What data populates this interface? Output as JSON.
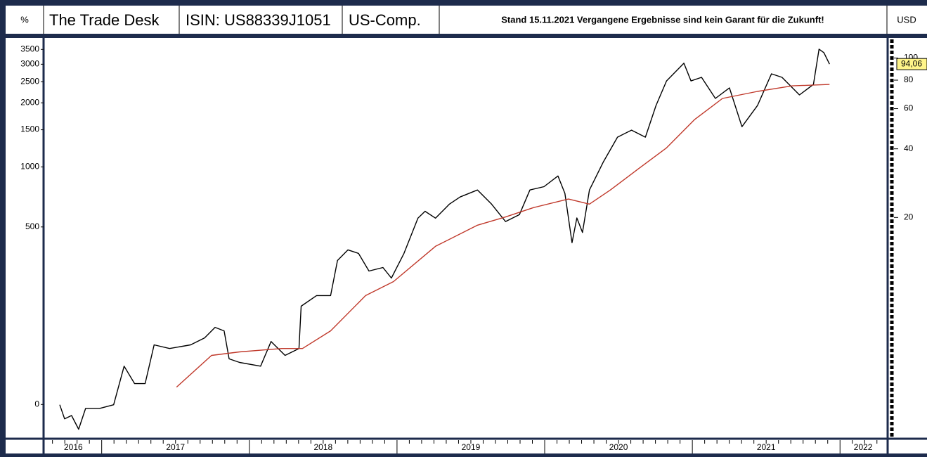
{
  "chart_data": {
    "type": "line",
    "header": {
      "left_unit": "%",
      "name": "The Trade Desk",
      "isin": "ISIN: US88339J1051",
      "market": "US-Comp.",
      "note": "Stand 15.11.2021  Vergangene Ergebnisse sind kein Garant für die Zukunft!",
      "right_unit": "USD"
    },
    "yscale": "log-growth",
    "ylim": [
      -27.7,
      3718
    ],
    "yticks": [
      0,
      500,
      1000,
      1500,
      2000,
      2500,
      3000,
      3500
    ],
    "y2scale": "log",
    "y2lim": [
      2.19,
      115.7
    ],
    "y2ticks": [
      20,
      40,
      60,
      80,
      100
    ],
    "xlim": [
      2016.616,
      2022.313
    ],
    "xticks": [
      2017,
      2018,
      2019,
      2020,
      2021,
      2022
    ],
    "year_labels": [
      "2016",
      "2017",
      "2018",
      "2019",
      "2020",
      "2021",
      "2022"
    ],
    "series": [
      {
        "name": "The Trade Desk",
        "color": "#000000",
        "axis": "y2",
        "x": [
          2016.716,
          2016.749,
          2016.796,
          2016.844,
          2016.891,
          2016.986,
          2017.081,
          2017.152,
          2017.223,
          2017.294,
          2017.355,
          2017.46,
          2017.602,
          2017.697,
          2017.768,
          2017.829,
          2017.863,
          2017.934,
          2018.076,
          2018.147,
          2018.242,
          2018.336,
          2018.351,
          2018.455,
          2018.55,
          2018.597,
          2018.668,
          2018.739,
          2018.81,
          2018.905,
          2018.962,
          2019.047,
          2019.142,
          2019.19,
          2019.261,
          2019.355,
          2019.427,
          2019.545,
          2019.64,
          2019.735,
          2019.829,
          2019.9,
          2019.995,
          2020.09,
          2020.137,
          2020.185,
          2020.218,
          2020.256,
          2020.303,
          2020.398,
          2020.493,
          2020.588,
          2020.682,
          2020.754,
          2020.825,
          2020.943,
          2020.991,
          2021.062,
          2021.156,
          2021.251,
          2021.336,
          2021.441,
          2021.536,
          2021.607,
          2021.725,
          2021.82,
          2021.858,
          2021.891,
          2021.929
        ],
        "values": [
          3.02,
          2.62,
          2.71,
          2.36,
          2.91,
          2.91,
          3.02,
          4.46,
          3.74,
          3.74,
          5.53,
          5.33,
          5.53,
          5.93,
          6.6,
          6.37,
          4.8,
          4.63,
          4.46,
          5.72,
          4.97,
          5.33,
          8.17,
          9.09,
          9.09,
          12.96,
          14.42,
          13.92,
          11.65,
          12.07,
          10.85,
          13.92,
          19.86,
          21.3,
          19.86,
          22.9,
          24.6,
          26.4,
          22.9,
          19.2,
          20.6,
          26.4,
          27.3,
          30.4,
          25.5,
          15.5,
          19.9,
          17.2,
          26.4,
          35.1,
          45.0,
          48.3,
          45.0,
          61.9,
          79.4,
          94.9,
          79.4,
          82.3,
          66.5,
          74.0,
          50.0,
          61.9,
          85.3,
          82.3,
          68.9,
          76.6,
          109.4,
          105.6,
          94.06
        ]
      },
      {
        "name": "Moving average",
        "color": "#c0392b",
        "axis": "y2",
        "x": [
          2017.507,
          2017.744,
          2017.934,
          2018.218,
          2018.36,
          2018.55,
          2018.787,
          2018.976,
          2019.261,
          2019.545,
          2019.735,
          2019.924,
          2020.161,
          2020.303,
          2020.445,
          2020.635,
          2020.825,
          2021.014,
          2021.204,
          2021.441,
          2021.678,
          2021.929
        ],
        "values": [
          3.61,
          4.97,
          5.15,
          5.33,
          5.33,
          6.37,
          9.09,
          10.47,
          14.95,
          18.5,
          20.1,
          22.1,
          24.1,
          22.9,
          26.4,
          32.7,
          40.4,
          53.7,
          66.5,
          71.4,
          75.5,
          76.6
        ]
      }
    ],
    "price_label": {
      "value": 94.06,
      "label": "94,06"
    }
  }
}
